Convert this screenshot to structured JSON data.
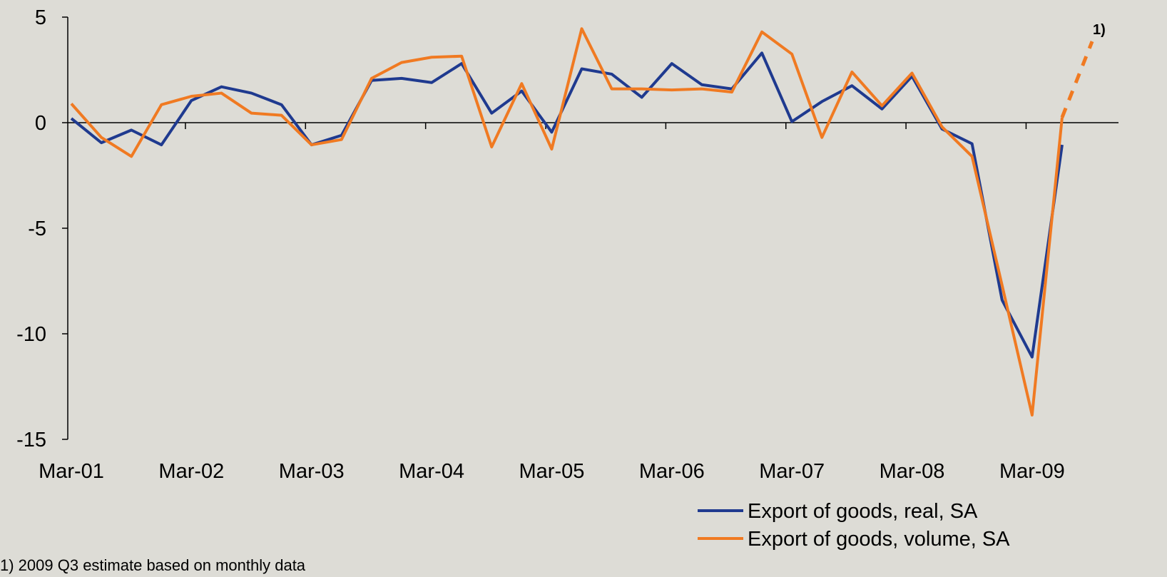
{
  "chart_data": {
    "type": "line",
    "categories": [
      "Mar-01",
      null,
      null,
      null,
      "Mar-02",
      null,
      null,
      null,
      "Mar-03",
      null,
      null,
      null,
      "Mar-04",
      null,
      null,
      null,
      "Mar-05",
      null,
      null,
      null,
      "Mar-06",
      null,
      null,
      null,
      "Mar-07",
      null,
      null,
      null,
      "Mar-08",
      null,
      null,
      null,
      "Mar-09",
      null,
      null
    ],
    "series": [
      {
        "name": "Export of goods, real, SA",
        "color": "#1f3a8f",
        "values": [
          0.2,
          -0.95,
          -0.35,
          -1.05,
          1.05,
          1.7,
          1.4,
          0.85,
          -1.05,
          -0.6,
          2.0,
          2.1,
          1.9,
          2.8,
          0.45,
          1.5,
          -0.45,
          2.55,
          2.3,
          1.2,
          2.8,
          1.8,
          1.6,
          3.3,
          0.05,
          1.0,
          1.75,
          0.65,
          2.2,
          -0.3,
          -1.0,
          -8.4,
          -11.1,
          -1.05,
          null
        ]
      },
      {
        "name": "Export of goods, volume, SA",
        "color": "#f07a22",
        "dashed_last_segment": true,
        "values": [
          0.9,
          -0.7,
          -1.6,
          0.85,
          1.25,
          1.4,
          0.45,
          0.35,
          -1.05,
          -0.8,
          2.1,
          2.85,
          3.1,
          3.15,
          -1.15,
          1.85,
          -1.25,
          4.45,
          1.6,
          1.6,
          1.55,
          1.6,
          1.45,
          4.3,
          3.25,
          -0.7,
          2.4,
          0.8,
          2.35,
          -0.2,
          -1.6,
          -7.7,
          -13.85,
          0.25,
          3.85
        ]
      }
    ],
    "ylim": [
      -15,
      5
    ],
    "yticks": [
      -15,
      -10,
      -5,
      0,
      5
    ],
    "annotation": "1)",
    "footnote": "1) 2009 Q3 estimate based on monthly data",
    "legend": "bottom-right"
  }
}
